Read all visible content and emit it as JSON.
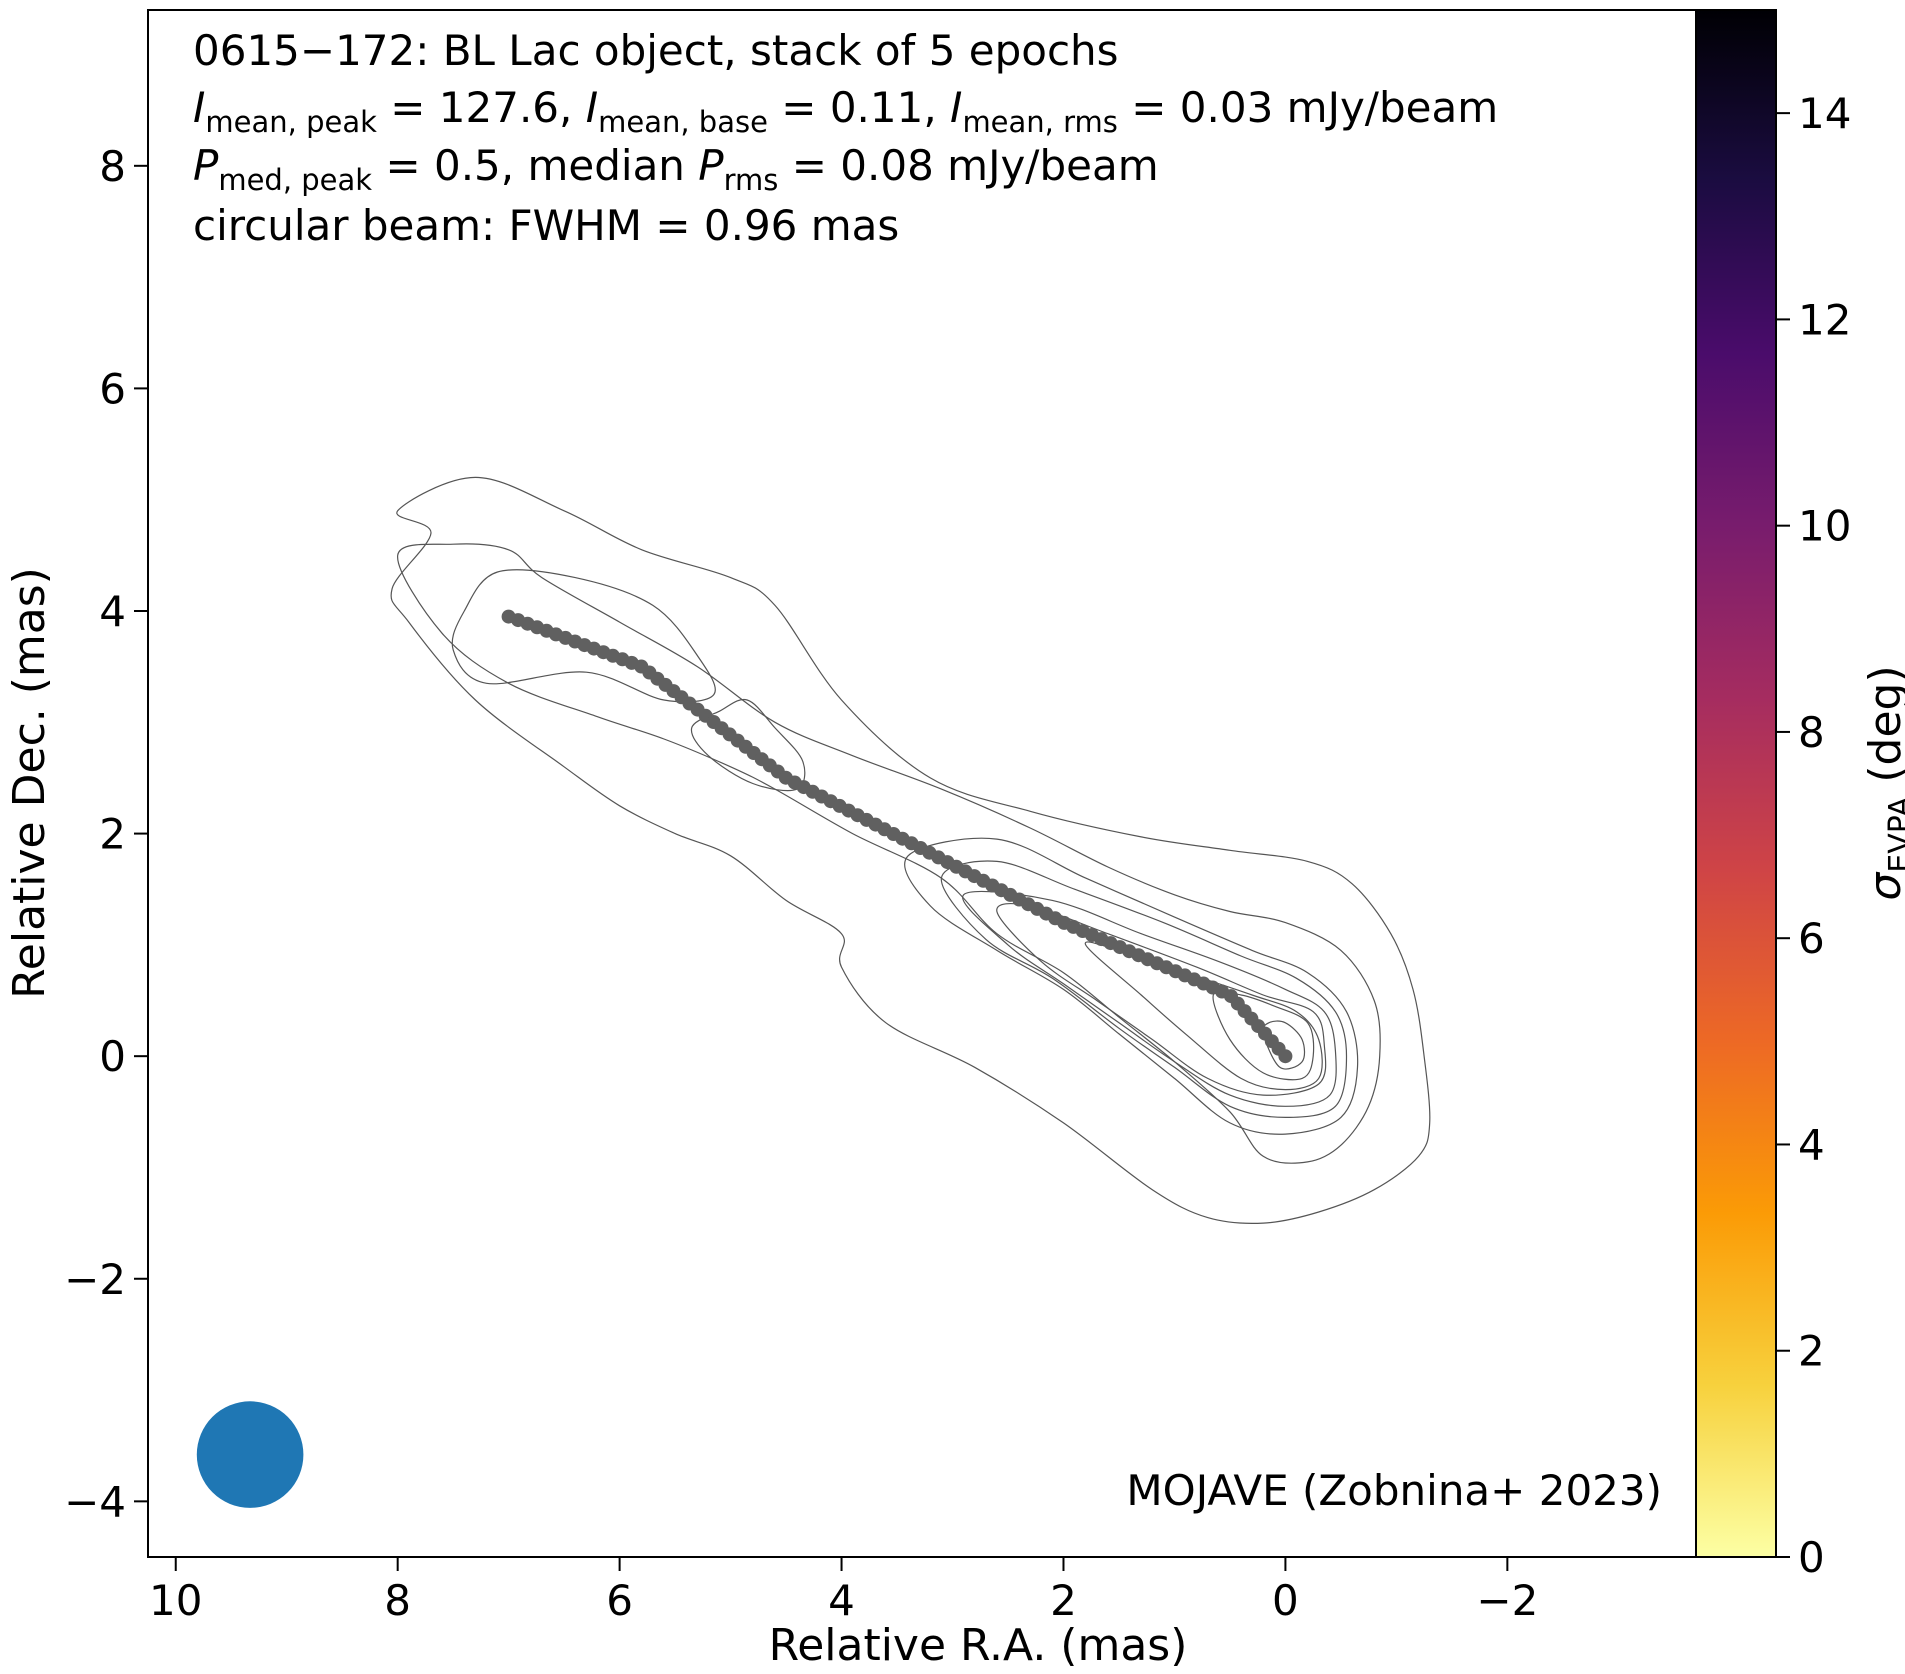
{
  "chart_data": {
    "type": "scatter",
    "annotation_lines": [
      "0615−172: BL Lac object, stack of 5 epochs",
      "I_mean,peak = 127.6, I_mean,base = 0.11, I_mean,rms = 0.03 mJy/beam",
      "P_med,peak = 0.5, median P_rms = 0.08 mJy/beam",
      "circular beam: FWHM = 0.96 mas"
    ],
    "header": {
      "line1": "0615−172: BL Lac object, stack of 5 epochs",
      "line2": {
        "a": "I",
        "a_sub": "mean, peak",
        "a_val": " = 127.6, ",
        "b": "I",
        "b_sub": "mean, base",
        "b_val": " = 0.11, ",
        "c": "I",
        "c_sub": "mean, rms",
        "c_val": " = 0.03 mJy/beam"
      },
      "line3": {
        "a": "P",
        "a_sub": "med, peak",
        "a_val": " = 0.5, median ",
        "b": "P",
        "b_sub": "rms",
        "b_val": " = 0.08 mJy/beam"
      },
      "line4": "circular beam: FWHM = 0.96 mas"
    },
    "credit": "MOJAVE (Zobnina+ 2023)",
    "xlabel": "Relative R.A. (mas)",
    "ylabel": "Relative Dec. (mas)",
    "xlim": [
      10.25,
      -3.7
    ],
    "ylim": [
      -4.5,
      9.4
    ],
    "x_ticks": [
      10,
      8,
      6,
      4,
      2,
      0,
      -2
    ],
    "x_tick_labels": [
      "10",
      "8",
      "6",
      "4",
      "2",
      "0",
      "−2"
    ],
    "y_ticks": [
      -4,
      -2,
      0,
      2,
      4,
      6,
      8
    ],
    "y_tick_labels": [
      "−4",
      "−2",
      "0",
      "2",
      "4",
      "6",
      "8"
    ],
    "colorbar": {
      "label": "σ",
      "label_sub": "EVPA",
      "label_unit": " (deg)",
      "range": [
        0,
        15
      ],
      "ticks": [
        0,
        2,
        4,
        6,
        8,
        10,
        12,
        14
      ],
      "tick_labels": [
        "0",
        "2",
        "4",
        "6",
        "8",
        "10",
        "12",
        "14"
      ],
      "colormap": "inferno_r",
      "colormap_stops": [
        "#fcffa4",
        "#f7d13d",
        "#fb9b06",
        "#ed6925",
        "#cf4446",
        "#a52c60",
        "#781c6d",
        "#4a0c6b",
        "#1b0c41",
        "#000004"
      ]
    },
    "ridgeline": {
      "color": "#606060",
      "start": [
        7.0,
        3.95
      ],
      "end": [
        0.0,
        0.0
      ],
      "n_points": 90,
      "nodes": [
        [
          7.0,
          3.95
        ],
        [
          5.8,
          3.5
        ],
        [
          4.5,
          2.5
        ],
        [
          2.0,
          1.2
        ],
        [
          0.5,
          0.55
        ],
        [
          0.0,
          0.0
        ]
      ]
    },
    "contours": {
      "color": "#555555",
      "levels": [
        [
          [
            7.7,
            4.7
          ],
          [
            8.0,
            4.9
          ],
          [
            7.3,
            5.2
          ],
          [
            6.5,
            4.9
          ],
          [
            5.8,
            4.55
          ],
          [
            5.0,
            4.3
          ],
          [
            4.6,
            4.05
          ],
          [
            4.0,
            3.2
          ],
          [
            3.2,
            2.5
          ],
          [
            2.3,
            2.2
          ],
          [
            1.3,
            1.97
          ],
          [
            0.5,
            1.85
          ],
          [
            -0.2,
            1.75
          ],
          [
            -0.6,
            1.55
          ],
          [
            -0.95,
            1.1
          ],
          [
            -1.15,
            0.6
          ],
          [
            -1.25,
            0.0
          ],
          [
            -1.3,
            -0.6
          ],
          [
            -1.2,
            -0.9
          ],
          [
            -0.8,
            -1.2
          ],
          [
            -0.3,
            -1.4
          ],
          [
            0.2,
            -1.5
          ],
          [
            0.7,
            -1.45
          ],
          [
            1.2,
            -1.2
          ],
          [
            2.0,
            -0.6
          ],
          [
            2.8,
            -0.1
          ],
          [
            3.6,
            0.3
          ],
          [
            4.0,
            0.8
          ],
          [
            4.0,
            1.1
          ],
          [
            4.5,
            1.4
          ],
          [
            5.0,
            1.8
          ],
          [
            5.5,
            2.0
          ],
          [
            6.0,
            2.25
          ],
          [
            6.5,
            2.6
          ],
          [
            7.3,
            3.2
          ],
          [
            7.9,
            3.9
          ],
          [
            8.05,
            4.2
          ]
        ],
        [
          [
            6.7,
            4.3
          ],
          [
            7.0,
            4.55
          ],
          [
            7.5,
            4.6
          ],
          [
            8.0,
            4.5
          ],
          [
            7.6,
            3.8
          ],
          [
            7.0,
            3.35
          ],
          [
            6.2,
            3.05
          ],
          [
            5.6,
            2.85
          ],
          [
            5.0,
            2.6
          ],
          [
            4.6,
            2.4
          ],
          [
            3.9,
            2.0
          ],
          [
            3.1,
            1.6
          ],
          [
            2.6,
            1.1
          ],
          [
            2.0,
            0.75
          ],
          [
            1.5,
            0.35
          ],
          [
            1.0,
            -0.05
          ],
          [
            0.5,
            -0.5
          ],
          [
            0.2,
            -0.9
          ],
          [
            -0.2,
            -0.95
          ],
          [
            -0.5,
            -0.8
          ],
          [
            -0.75,
            -0.45
          ],
          [
            -0.85,
            0.0
          ],
          [
            -0.8,
            0.5
          ],
          [
            -0.5,
            0.95
          ],
          [
            0.0,
            1.2
          ],
          [
            0.5,
            1.3
          ],
          [
            1.0,
            1.45
          ],
          [
            1.6,
            1.7
          ],
          [
            2.3,
            2.05
          ],
          [
            3.1,
            2.4
          ],
          [
            3.9,
            2.7
          ],
          [
            4.6,
            3.0
          ],
          [
            5.3,
            3.5
          ],
          [
            6.0,
            3.9
          ]
        ],
        [
          [
            6.3,
            3.45
          ],
          [
            7.2,
            3.35
          ],
          [
            7.5,
            3.65
          ],
          [
            7.4,
            4.0
          ],
          [
            7.1,
            4.35
          ],
          [
            6.4,
            4.3
          ],
          [
            5.7,
            4.05
          ],
          [
            5.3,
            3.6
          ],
          [
            5.15,
            3.25
          ],
          [
            5.6,
            3.2
          ]
        ],
        [
          [
            5.1,
            3.1
          ],
          [
            4.85,
            3.2
          ],
          [
            4.6,
            2.95
          ],
          [
            4.35,
            2.65
          ],
          [
            4.4,
            2.4
          ],
          [
            4.8,
            2.45
          ],
          [
            5.2,
            2.7
          ],
          [
            5.35,
            2.95
          ]
        ],
        [
          [
            3.4,
            1.8
          ],
          [
            3.2,
            1.35
          ],
          [
            2.6,
            0.95
          ],
          [
            2.0,
            0.6
          ],
          [
            1.5,
            0.2
          ],
          [
            1.0,
            -0.2
          ],
          [
            0.5,
            -0.6
          ],
          [
            0.0,
            -0.7
          ],
          [
            -0.5,
            -0.55
          ],
          [
            -0.65,
            -0.1
          ],
          [
            -0.55,
            0.4
          ],
          [
            -0.2,
            0.75
          ],
          [
            0.3,
            0.95
          ],
          [
            1.0,
            1.25
          ],
          [
            1.8,
            1.6
          ],
          [
            2.6,
            1.95
          ]
        ],
        [
          [
            3.1,
            1.6
          ],
          [
            2.7,
            1.05
          ],
          [
            2.1,
            0.7
          ],
          [
            1.5,
            0.25
          ],
          [
            1.0,
            -0.1
          ],
          [
            0.5,
            -0.45
          ],
          [
            0.0,
            -0.55
          ],
          [
            -0.45,
            -0.45
          ],
          [
            -0.55,
            0.0
          ],
          [
            -0.45,
            0.4
          ],
          [
            -0.1,
            0.7
          ],
          [
            0.4,
            0.9
          ],
          [
            1.1,
            1.2
          ],
          [
            1.9,
            1.5
          ],
          [
            2.6,
            1.75
          ]
        ],
        [
          [
            2.9,
            1.45
          ],
          [
            2.5,
            1.0
          ],
          [
            2.0,
            0.65
          ],
          [
            1.5,
            0.3
          ],
          [
            1.0,
            -0.05
          ],
          [
            0.5,
            -0.35
          ],
          [
            0.0,
            -0.45
          ],
          [
            -0.4,
            -0.35
          ],
          [
            -0.45,
            0.05
          ],
          [
            -0.35,
            0.4
          ],
          [
            0.0,
            0.6
          ],
          [
            0.6,
            0.85
          ],
          [
            1.3,
            1.1
          ],
          [
            2.1,
            1.4
          ]
        ],
        [
          [
            2.6,
            1.3
          ],
          [
            2.2,
            0.85
          ],
          [
            1.7,
            0.5
          ],
          [
            1.2,
            0.15
          ],
          [
            0.7,
            -0.2
          ],
          [
            0.2,
            -0.35
          ],
          [
            -0.3,
            -0.25
          ],
          [
            -0.35,
            0.1
          ],
          [
            -0.25,
            0.4
          ],
          [
            0.2,
            0.55
          ],
          [
            0.8,
            0.8
          ],
          [
            1.6,
            1.1
          ],
          [
            2.3,
            1.35
          ]
        ],
        [
          [
            1.8,
            1.0
          ],
          [
            1.3,
            0.55
          ],
          [
            0.9,
            0.2
          ],
          [
            0.4,
            -0.2
          ],
          [
            0.0,
            -0.3
          ],
          [
            -0.3,
            -0.2
          ],
          [
            -0.3,
            0.15
          ],
          [
            -0.1,
            0.4
          ],
          [
            0.3,
            0.55
          ],
          [
            0.9,
            0.75
          ],
          [
            1.5,
            0.95
          ]
        ],
        [
          [
            0.65,
            0.55
          ],
          [
            0.5,
            0.15
          ],
          [
            0.2,
            -0.15
          ],
          [
            -0.15,
            -0.2
          ],
          [
            -0.25,
            0.0
          ],
          [
            -0.2,
            0.3
          ],
          [
            0.1,
            0.45
          ],
          [
            0.4,
            0.55
          ]
        ],
        [
          [
            0.2,
            0.2
          ],
          [
            0.05,
            -0.1
          ],
          [
            -0.15,
            -0.05
          ],
          [
            -0.15,
            0.15
          ],
          [
            0.0,
            0.3
          ],
          [
            0.15,
            0.3
          ]
        ]
      ]
    },
    "beam": {
      "fwhm_mas": 0.96,
      "center": [
        9.33,
        -3.58
      ],
      "color": "#1f77b4"
    }
  }
}
